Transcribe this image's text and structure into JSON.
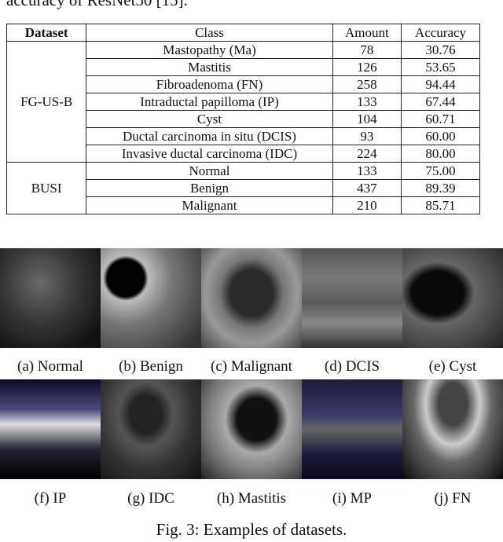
{
  "intro_text": "accuracy of ResNet50 [15].",
  "table": {
    "header": [
      "Dataset",
      "Class",
      "Amount",
      "Accuracy"
    ],
    "groups": [
      {
        "dataset": "FG-US-B",
        "rows": [
          [
            "Mastopathy (Ma)",
            "78",
            "30.76"
          ],
          [
            "Mastitis",
            "126",
            "53.65"
          ],
          [
            "Fibroadenoma (FN)",
            "258",
            "94.44"
          ],
          [
            "Intraductal papilloma (IP)",
            "133",
            "67.44"
          ],
          [
            "Cyst",
            "104",
            "60.71"
          ],
          [
            "Ductal carcinoma in situ (DCIS)",
            "93",
            "60.00"
          ],
          [
            "Invasive ductal carcinoma (IDC)",
            "224",
            "80.00"
          ]
        ]
      },
      {
        "dataset": "BUSI",
        "rows": [
          [
            "Normal",
            "133",
            "75.00"
          ],
          [
            "Benign",
            "437",
            "89.39"
          ],
          [
            "Malignant",
            "210",
            "85.71"
          ]
        ]
      }
    ]
  },
  "figure": {
    "panels": [
      "(a) Normal",
      "(b) Benign",
      "(c) Malignant",
      "(d) DCIS",
      "(e) Cyst",
      "(f) IP",
      "(g) IDC",
      "(h) Mastitis",
      "(i) MP",
      "(j) FN"
    ],
    "caption": "Fig. 3: Examples of datasets."
  }
}
